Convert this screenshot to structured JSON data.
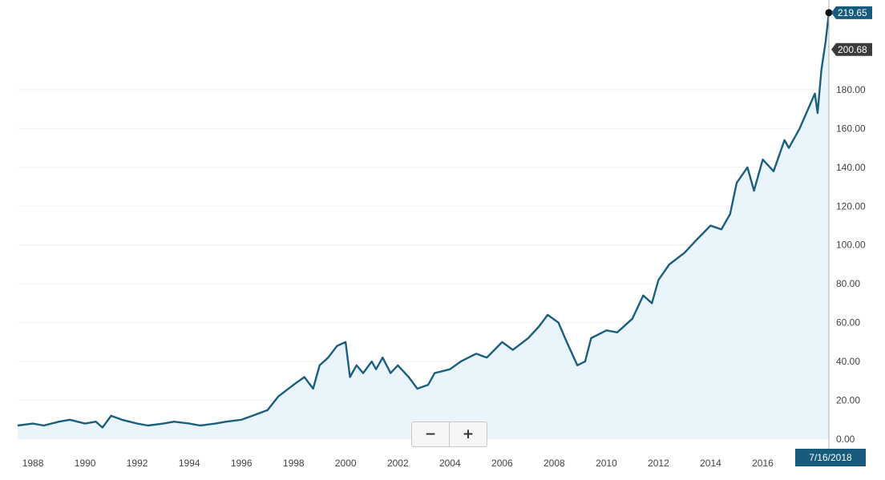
{
  "chart_data": {
    "type": "area",
    "title": "",
    "xlabel": "",
    "ylabel": "",
    "x_ticks": [
      "1988",
      "1990",
      "1992",
      "1994",
      "1996",
      "1998",
      "2000",
      "2002",
      "2004",
      "2006",
      "2008",
      "2010",
      "2012",
      "2014",
      "2016"
    ],
    "y_ticks": [
      "0.00",
      "20.00",
      "40.00",
      "60.00",
      "80.00",
      "100.00",
      "120.00",
      "140.00",
      "160.00",
      "180.00"
    ],
    "xlim": [
      "1987-06-01",
      "2018-07-16"
    ],
    "ylim": [
      0,
      220
    ],
    "grid": true,
    "series": [
      {
        "x": [
          "1987-06-01",
          "1988-01-01",
          "1988-06-01",
          "1989-01-01",
          "1989-06-01",
          "1990-01-01",
          "1990-06-01",
          "1990-09-01",
          "1991-01-01",
          "1991-06-01",
          "1992-01-01",
          "1992-06-01",
          "1993-01-01",
          "1993-06-01",
          "1994-01-01",
          "1994-06-01",
          "1995-01-01",
          "1995-06-01",
          "1996-01-01",
          "1996-06-01",
          "1997-01-01",
          "1997-06-01",
          "1998-01-01",
          "1998-06-01",
          "1998-10-01",
          "1999-01-01",
          "1999-05-01",
          "1999-09-01",
          "1999-12-31",
          "2000-03-01",
          "2000-06-01",
          "2000-09-01",
          "2000-12-31",
          "2001-03-01",
          "2001-06-01",
          "2001-09-21",
          "2002-01-01",
          "2002-06-01",
          "2002-10-01",
          "2003-03-01",
          "2003-06-01",
          "2004-01-01",
          "2004-06-01",
          "2005-01-01",
          "2005-06-01",
          "2006-01-01",
          "2006-06-01",
          "2007-01-01",
          "2007-06-01",
          "2007-10-01",
          "2008-03-01",
          "2008-06-01",
          "2008-11-20",
          "2009-03-09",
          "2009-06-01",
          "2010-01-01",
          "2010-06-01",
          "2010-12-31",
          "2011-06-01",
          "2011-10-01",
          "2012-01-01",
          "2012-06-01",
          "2012-12-31",
          "2013-06-01",
          "2013-12-31",
          "2014-06-01",
          "2014-10-01",
          "2015-01-01",
          "2015-06-01",
          "2015-09-01",
          "2016-01-01",
          "2016-06-01",
          "2016-11-01",
          "2017-01-01",
          "2017-06-01",
          "2017-12-31",
          "2018-02-08",
          "2018-04-01",
          "2018-06-01",
          "2018-07-16"
        ],
        "values": [
          7,
          8,
          7,
          9,
          10,
          8,
          9,
          6,
          12,
          10,
          8,
          7,
          8,
          9,
          8,
          7,
          8,
          9,
          10,
          12,
          15,
          22,
          28,
          32,
          26,
          38,
          42,
          48,
          50,
          32,
          38,
          34,
          40,
          36,
          42,
          34,
          38,
          32,
          26,
          28,
          34,
          36,
          40,
          44,
          42,
          50,
          46,
          52,
          58,
          64,
          60,
          52,
          38,
          40,
          52,
          56,
          55,
          62,
          74,
          70,
          82,
          90,
          96,
          102,
          110,
          108,
          116,
          132,
          140,
          128,
          144,
          138,
          154,
          150,
          160,
          178,
          168,
          190,
          205,
          219.65
        ]
      }
    ],
    "flags": {
      "last_value": "219.65",
      "reference_value": "200.68",
      "reference_level": 200.68,
      "date": "7/16/2018"
    },
    "colors": {
      "line": "#1b5f7f",
      "fill": "#e9f4fb",
      "grid": "#f1f1f1",
      "flag_dark": "#3a3a3a",
      "flag_blue": "#175a7c"
    }
  },
  "controls": {
    "zoom_out": "−",
    "zoom_in": "+"
  }
}
